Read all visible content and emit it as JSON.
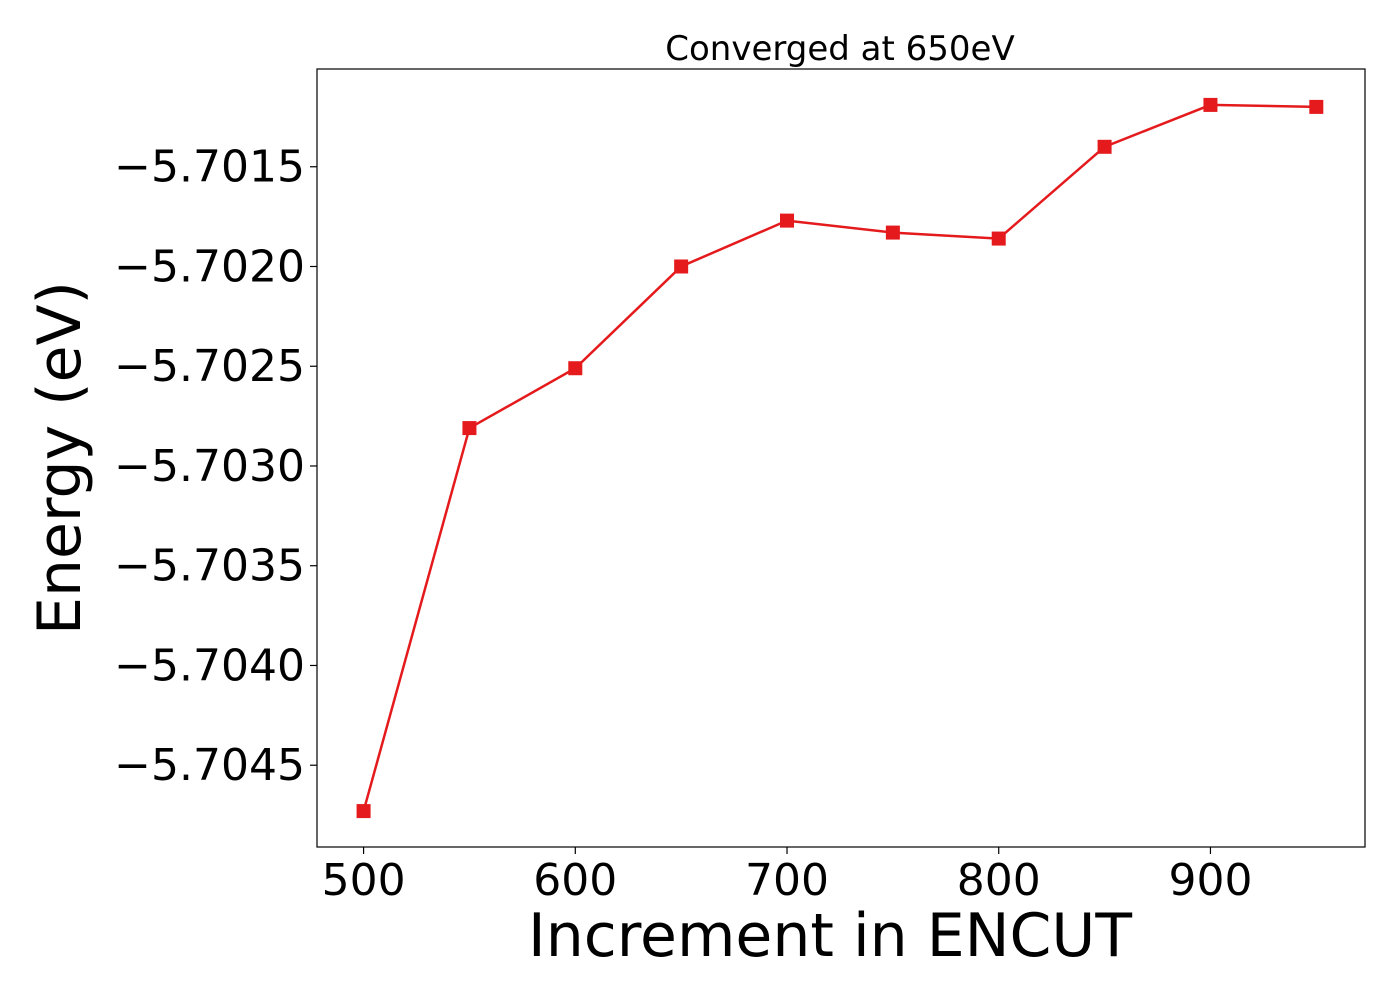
{
  "chart_data": {
    "type": "line",
    "title": "Converged at 650eV",
    "xlabel": "Increment in ENCUT",
    "ylabel": "Energy (eV)",
    "x": [
      500,
      550,
      600,
      650,
      700,
      750,
      800,
      850,
      900,
      950
    ],
    "series": [
      {
        "values": [
          -5.70473,
          -5.70281,
          -5.70251,
          -5.702,
          -5.70177,
          -5.70183,
          -5.70186,
          -5.7014,
          -5.70119,
          -5.7012
        ],
        "color": "#e41a1c",
        "marker": "square"
      }
    ],
    "xlim": [
      478,
      973
    ],
    "ylim": [
      -5.70491,
      -5.70101
    ],
    "xticks": [
      500,
      600,
      700,
      800,
      900
    ],
    "xtick_labels": [
      "500",
      "600",
      "700",
      "800",
      "900"
    ],
    "yticks": [
      -5.7045,
      -5.704,
      -5.7035,
      -5.703,
      -5.7025,
      -5.702,
      -5.7015
    ],
    "ytick_labels": [
      "−5.7045",
      "−5.7040",
      "−5.7035",
      "−5.7030",
      "−5.7025",
      "−5.7020",
      "−5.7015"
    ],
    "grid": false,
    "legend": "none"
  }
}
